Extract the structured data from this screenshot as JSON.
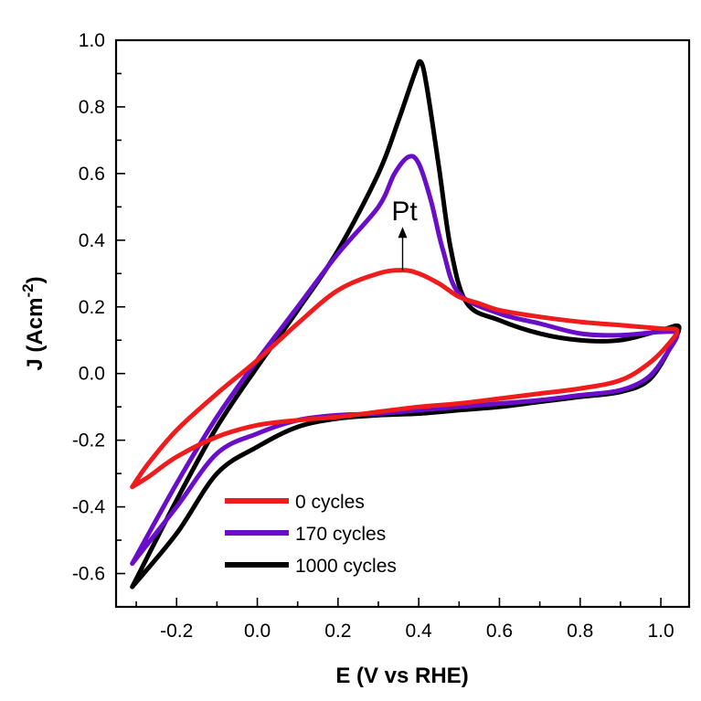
{
  "chart_data": {
    "type": "line",
    "xlabel": "E (V vs RHE)",
    "ylabel": "J (Acm",
    "ylabel_sup": "-2",
    "ylabel_close": ")",
    "xlim": [
      -0.35,
      1.07
    ],
    "ylim": [
      -0.7,
      1.0
    ],
    "xticks": [
      -0.2,
      0.0,
      0.2,
      0.4,
      0.6,
      0.8,
      1.0
    ],
    "xtick_labels": [
      "-0.2",
      "0.0",
      "0.2",
      "0.4",
      "0.6",
      "0.8",
      "1.0"
    ],
    "yticks": [
      -0.6,
      -0.4,
      -0.2,
      0.0,
      0.2,
      0.4,
      0.6,
      0.8,
      1.0
    ],
    "ytick_labels": [
      "-0.6",
      "-0.4",
      "-0.2",
      "0.0",
      "0.2",
      "0.4",
      "0.6",
      "0.8",
      "1.0"
    ],
    "legend_position": "bottom-left",
    "annotation": {
      "text": "Pt",
      "arrow_from": [
        0.36,
        0.31
      ],
      "arrow_to": [
        0.36,
        0.44
      ],
      "text_at": [
        0.36,
        0.46
      ]
    },
    "series": [
      {
        "name": "0 cycles",
        "color": "#ee1c1c",
        "points": [
          [
            -0.31,
            -0.34
          ],
          [
            -0.27,
            -0.31
          ],
          [
            -0.2,
            -0.25
          ],
          [
            -0.1,
            -0.19
          ],
          [
            0.0,
            -0.155
          ],
          [
            0.1,
            -0.14
          ],
          [
            0.2,
            -0.13
          ],
          [
            0.3,
            -0.115
          ],
          [
            0.4,
            -0.1
          ],
          [
            0.5,
            -0.09
          ],
          [
            0.6,
            -0.075
          ],
          [
            0.7,
            -0.06
          ],
          [
            0.8,
            -0.045
          ],
          [
            0.9,
            -0.02
          ],
          [
            0.97,
            0.03
          ],
          [
            1.02,
            0.09
          ],
          [
            1.04,
            0.13
          ],
          [
            1.0,
            0.135
          ],
          [
            0.9,
            0.145
          ],
          [
            0.8,
            0.155
          ],
          [
            0.7,
            0.17
          ],
          [
            0.6,
            0.19
          ],
          [
            0.55,
            0.21
          ],
          [
            0.5,
            0.23
          ],
          [
            0.45,
            0.27
          ],
          [
            0.4,
            0.3
          ],
          [
            0.36,
            0.31
          ],
          [
            0.3,
            0.3
          ],
          [
            0.2,
            0.25
          ],
          [
            0.1,
            0.15
          ],
          [
            0.0,
            0.04
          ],
          [
            -0.1,
            -0.06
          ],
          [
            -0.2,
            -0.17
          ],
          [
            -0.27,
            -0.27
          ],
          [
            -0.31,
            -0.34
          ]
        ]
      },
      {
        "name": "170 cycles",
        "color": "#6a0dc9",
        "points": [
          [
            -0.31,
            -0.57
          ],
          [
            -0.2,
            -0.4
          ],
          [
            -0.1,
            -0.24
          ],
          [
            0.0,
            -0.18
          ],
          [
            0.1,
            -0.14
          ],
          [
            0.2,
            -0.125
          ],
          [
            0.3,
            -0.12
          ],
          [
            0.4,
            -0.11
          ],
          [
            0.5,
            -0.1
          ],
          [
            0.6,
            -0.09
          ],
          [
            0.7,
            -0.08
          ],
          [
            0.8,
            -0.065
          ],
          [
            0.9,
            -0.05
          ],
          [
            0.97,
            -0.01
          ],
          [
            1.02,
            0.07
          ],
          [
            1.04,
            0.12
          ],
          [
            1.0,
            0.125
          ],
          [
            0.9,
            0.115
          ],
          [
            0.8,
            0.12
          ],
          [
            0.7,
            0.15
          ],
          [
            0.6,
            0.18
          ],
          [
            0.5,
            0.24
          ],
          [
            0.46,
            0.37
          ],
          [
            0.43,
            0.52
          ],
          [
            0.4,
            0.63
          ],
          [
            0.375,
            0.65
          ],
          [
            0.34,
            0.6
          ],
          [
            0.3,
            0.5
          ],
          [
            0.2,
            0.36
          ],
          [
            0.1,
            0.2
          ],
          [
            0.0,
            0.04
          ],
          [
            -0.1,
            -0.13
          ],
          [
            -0.2,
            -0.33
          ],
          [
            -0.31,
            -0.57
          ]
        ]
      },
      {
        "name": "1000 cycles",
        "color": "#000000",
        "points": [
          [
            -0.31,
            -0.64
          ],
          [
            -0.2,
            -0.48
          ],
          [
            -0.1,
            -0.3
          ],
          [
            0.0,
            -0.22
          ],
          [
            0.1,
            -0.16
          ],
          [
            0.2,
            -0.135
          ],
          [
            0.3,
            -0.125
          ],
          [
            0.4,
            -0.12
          ],
          [
            0.5,
            -0.11
          ],
          [
            0.6,
            -0.1
          ],
          [
            0.7,
            -0.085
          ],
          [
            0.8,
            -0.07
          ],
          [
            0.9,
            -0.055
          ],
          [
            0.97,
            -0.02
          ],
          [
            1.02,
            0.07
          ],
          [
            1.045,
            0.14
          ],
          [
            1.0,
            0.13
          ],
          [
            0.9,
            0.1
          ],
          [
            0.8,
            0.1
          ],
          [
            0.7,
            0.12
          ],
          [
            0.6,
            0.16
          ],
          [
            0.52,
            0.21
          ],
          [
            0.48,
            0.37
          ],
          [
            0.45,
            0.62
          ],
          [
            0.42,
            0.86
          ],
          [
            0.405,
            0.935
          ],
          [
            0.39,
            0.9
          ],
          [
            0.35,
            0.76
          ],
          [
            0.3,
            0.6
          ],
          [
            0.2,
            0.37
          ],
          [
            0.1,
            0.19
          ],
          [
            0.0,
            0.02
          ],
          [
            -0.1,
            -0.16
          ],
          [
            -0.2,
            -0.38
          ],
          [
            -0.31,
            -0.64
          ]
        ]
      }
    ]
  }
}
